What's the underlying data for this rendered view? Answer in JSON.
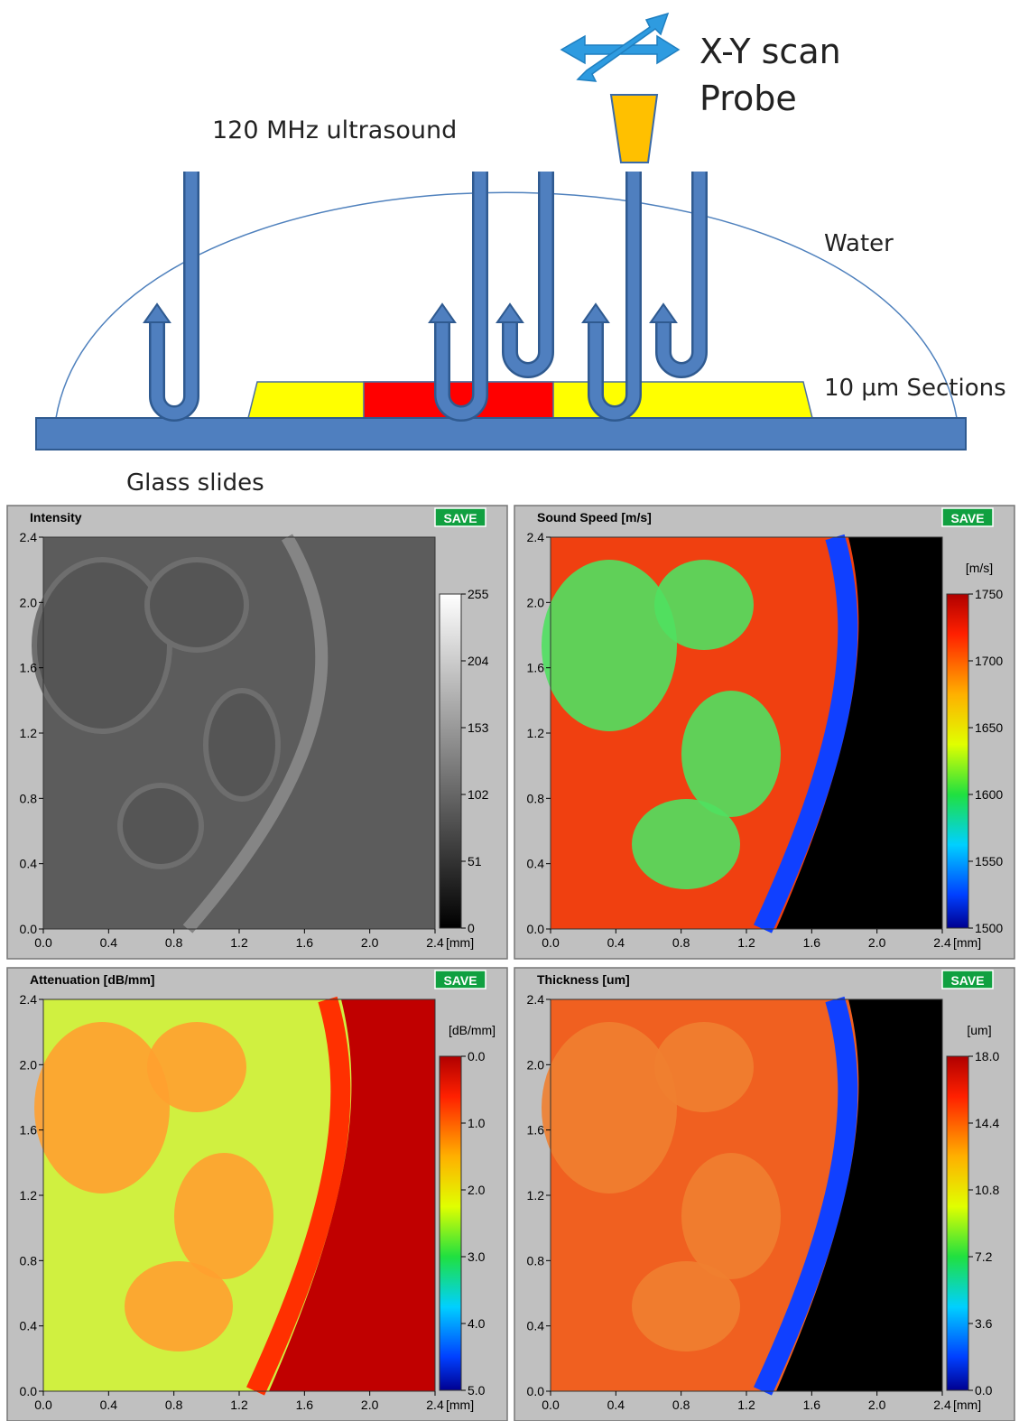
{
  "diagram": {
    "scan_label": "X-Y scan",
    "probe_label": "Probe",
    "ultrasound_label": "120 MHz ultrasound",
    "water_label": "Water",
    "sections_label": "10 µm Sections",
    "slides_label": "Glass slides"
  },
  "panels": [
    {
      "title": "Intensity",
      "save": "SAVE",
      "yticks": [
        "2.4",
        "2.0",
        "1.6",
        "1.2",
        "0.8",
        "0.4",
        "0.0"
      ],
      "xticks": [
        "0.0",
        "0.4",
        "0.8",
        "1.2",
        "1.6",
        "2.0",
        "2.4"
      ],
      "xunit": "[mm]",
      "colorbar_ticks": [
        "255",
        "204",
        "153",
        "102",
        "51",
        "0"
      ]
    },
    {
      "title": "Sound Speed [m/s]",
      "save": "SAVE",
      "yticks": [
        "2.4",
        "2.0",
        "1.6",
        "1.2",
        "0.8",
        "0.4",
        "0.0"
      ],
      "xticks": [
        "0.0",
        "0.4",
        "0.8",
        "1.2",
        "1.6",
        "2.0",
        "2.4"
      ],
      "xunit": "[mm]",
      "colorbar_unit": "[m/s]",
      "colorbar_ticks": [
        "1750",
        "1700",
        "1650",
        "1600",
        "1550",
        "1500"
      ]
    },
    {
      "title": "Attenuation [dB/mm]",
      "save": "SAVE",
      "yticks": [
        "2.4",
        "2.0",
        "1.6",
        "1.2",
        "0.8",
        "0.4",
        "0.0"
      ],
      "xticks": [
        "0.0",
        "0.4",
        "0.8",
        "1.2",
        "1.6",
        "2.0",
        "2.4"
      ],
      "xunit": "[mm]",
      "colorbar_unit": "[dB/mm]",
      "colorbar_ticks": [
        "0.0",
        "1.0",
        "2.0",
        "3.0",
        "4.0",
        "5.0"
      ]
    },
    {
      "title": "Thickness [um]",
      "save": "SAVE",
      "yticks": [
        "2.4",
        "2.0",
        "1.6",
        "1.2",
        "0.8",
        "0.4",
        "0.0"
      ],
      "xticks": [
        "0.0",
        "0.4",
        "0.8",
        "1.2",
        "1.6",
        "2.0",
        "2.4"
      ],
      "xunit": "[mm]",
      "colorbar_unit": "[um]",
      "colorbar_ticks": [
        "18.0",
        "14.4",
        "10.8",
        "7.2",
        "3.6",
        "0.0"
      ]
    }
  ]
}
